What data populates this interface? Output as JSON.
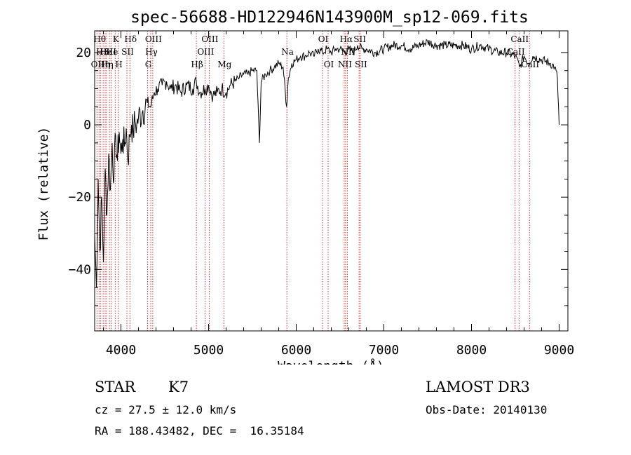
{
  "chart_data": {
    "type": "line",
    "title": "spec-56688-HD122946N143900M_sp12-069.fits",
    "xlabel": "Wavelength (Å)",
    "ylabel": "Flux (relative)",
    "xlim": [
      3700,
      9100
    ],
    "ylim": [
      -57,
      26
    ],
    "x_ticks": [
      4000,
      5000,
      6000,
      7000,
      8000,
      9000
    ],
    "y_ticks": [
      -40,
      -20,
      0,
      20
    ],
    "x_tick_labels": [
      "4000",
      "5000",
      "6000",
      "7000",
      "8000",
      "9000"
    ],
    "y_tick_labels": [
      "−40",
      "−20",
      "0",
      "20"
    ],
    "series": [
      {
        "name": "spectrum",
        "x": [
          3700,
          3720,
          3740,
          3760,
          3780,
          3800,
          3820,
          3840,
          3860,
          3880,
          3900,
          3920,
          3940,
          3960,
          3980,
          4000,
          4020,
          4040,
          4060,
          4080,
          4100,
          4120,
          4140,
          4160,
          4180,
          4200,
          4250,
          4300,
          4340,
          4380,
          4420,
          4470,
          4520,
          4570,
          4620,
          4680,
          4750,
          4820,
          4860,
          4900,
          4960,
          5000,
          5050,
          5100,
          5150,
          5200,
          5250,
          5300,
          5350,
          5400,
          5450,
          5500,
          5550,
          5580,
          5600,
          5650,
          5700,
          5750,
          5800,
          5850,
          5890,
          5910,
          5950,
          6000,
          6050,
          6100,
          6150,
          6200,
          6250,
          6300,
          6350,
          6400,
          6450,
          6500,
          6550,
          6600,
          6650,
          6700,
          6750,
          6800,
          6900,
          7000,
          7100,
          7200,
          7300,
          7400,
          7500,
          7600,
          7700,
          7800,
          7900,
          8000,
          8100,
          8200,
          8300,
          8400,
          8500,
          8550,
          8600,
          8650,
          8700,
          8800,
          8900,
          8950,
          8980,
          9000
        ],
        "y": [
          -30,
          -45,
          -15,
          -35,
          -20,
          -38,
          -12,
          -25,
          -8,
          -18,
          -5,
          -15,
          -3,
          -10,
          -2,
          -8,
          -4,
          -6,
          -1,
          -10,
          -3,
          0,
          -2,
          1,
          0,
          2,
          4,
          6,
          5,
          9,
          10,
          11,
          12,
          10,
          11,
          9,
          11,
          10,
          12,
          9,
          10,
          11,
          8,
          9,
          10,
          9,
          11,
          12,
          13,
          14,
          14,
          15,
          15,
          -5,
          12,
          14,
          15,
          16,
          17,
          16,
          5,
          13,
          17,
          18,
          19,
          19,
          20,
          19,
          21,
          20,
          21,
          20,
          21,
          21,
          20,
          21,
          20,
          22,
          21,
          21,
          20,
          21,
          22,
          22,
          21,
          22,
          23,
          22,
          22,
          22,
          22,
          21,
          22,
          21,
          20,
          20,
          19,
          16,
          19,
          17,
          19,
          18,
          17,
          16,
          13,
          0
        ]
      }
    ],
    "line_markers": [
      {
        "x": 3726,
        "label": "OII",
        "row": 3
      },
      {
        "x": 3750,
        "label": "Hθ",
        "row": 1
      },
      {
        "x": 3770,
        "label": "HI",
        "row": 2
      },
      {
        "x": 3797,
        "label": "Hη",
        "row": 3
      },
      {
        "x": 3820,
        "label": "He",
        "row": 2
      },
      {
        "x": 3835,
        "label": "Hη",
        "row": 3
      },
      {
        "x": 3869,
        "label": "SII",
        "row": 2
      },
      {
        "x": 3889,
        "label": "He",
        "row": 2
      },
      {
        "x": 3934,
        "label": "K",
        "row": 1
      },
      {
        "x": 3969,
        "label": "H",
        "row": 3
      },
      {
        "x": 4068,
        "label": "SII",
        "row": 2
      },
      {
        "x": 4102,
        "label": "Hδ",
        "row": 1
      },
      {
        "x": 4304,
        "label": "G",
        "row": 3
      },
      {
        "x": 4340,
        "label": "Hγ",
        "row": 2
      },
      {
        "x": 4363,
        "label": "OIII",
        "row": 1
      },
      {
        "x": 4861,
        "label": "Hβ",
        "row": 3
      },
      {
        "x": 4959,
        "label": "OIII",
        "row": 2
      },
      {
        "x": 5007,
        "label": "OIII",
        "row": 1
      },
      {
        "x": 5175,
        "label": "Mg",
        "row": 3
      },
      {
        "x": 5893,
        "label": "Na",
        "row": 2
      },
      {
        "x": 6300,
        "label": "OI",
        "row": 1
      },
      {
        "x": 6364,
        "label": "OI",
        "row": 3
      },
      {
        "x": 6548,
        "label": "NII",
        "row": 3
      },
      {
        "x": 6563,
        "label": "Hα",
        "row": 1
      },
      {
        "x": 6583,
        "label": "NII",
        "row": 2
      },
      {
        "x": 6717,
        "label": "SII",
        "row": 1
      },
      {
        "x": 6731,
        "label": "SII",
        "row": 3
      },
      {
        "x": 8498,
        "label": "CaII",
        "row": 2
      },
      {
        "x": 8542,
        "label": "CaII",
        "row": 1
      },
      {
        "x": 8662,
        "label": "CaII",
        "row": 3
      }
    ]
  },
  "info": {
    "class_label": "STAR",
    "subclass": "K7",
    "survey": "LAMOST DR3",
    "cz": "cz = 27.5 ± 12.0 km/s",
    "obs_date": "Obs-Date: 20140130",
    "coords": "RA = 188.43482, DEC =  16.35184"
  },
  "colors": {
    "line": "#000000",
    "marker": "#cc0000"
  }
}
